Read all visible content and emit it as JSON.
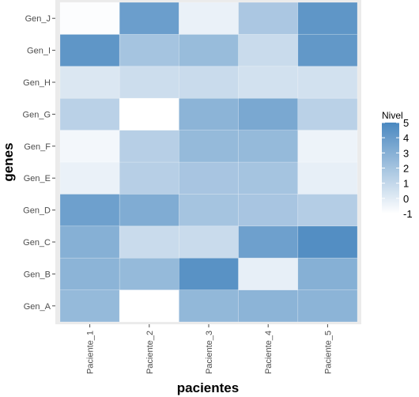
{
  "chart_data": {
    "type": "heatmap",
    "title": "",
    "xlabel": "pacientes",
    "ylabel": "genes",
    "x": [
      "Paciente_1",
      "Paciente_2",
      "Paciente_3",
      "Paciente_4",
      "Paciente_5"
    ],
    "y": [
      "Gen_A",
      "Gen_B",
      "Gen_C",
      "Gen_D",
      "Gen_E",
      "Gen_F",
      "Gen_G",
      "Gen_H",
      "Gen_I",
      "Gen_J"
    ],
    "values": [
      [
        2.5,
        -1.0,
        2.6,
        2.8,
        2.8
      ],
      [
        2.8,
        2.5,
        4.5,
        -0.2,
        3.0
      ],
      [
        3.0,
        0.8,
        0.8,
        3.8,
        4.7
      ],
      [
        3.8,
        3.2,
        2.0,
        1.9,
        1.5
      ],
      [
        -0.3,
        1.4,
        1.9,
        2.0,
        -0.2
      ],
      [
        -0.6,
        1.4,
        2.5,
        2.5,
        -0.4
      ],
      [
        1.3,
        -1.0,
        2.8,
        3.4,
        1.3
      ],
      [
        0.2,
        0.7,
        0.8,
        0.5,
        0.5
      ],
      [
        4.3,
        2.0,
        2.4,
        0.8,
        4.2
      ],
      [
        -0.9,
        3.9,
        -0.3,
        1.8,
        4.3
      ]
    ],
    "legend": {
      "title": "Nivel",
      "labels": [
        "5",
        "4",
        "3",
        "2",
        "1",
        "0",
        "-1"
      ],
      "range": [
        -1,
        5
      ],
      "position": "right"
    },
    "colors": {
      "low": "#ffffff",
      "high": "#4a88c0",
      "panel": "#ebebeb"
    },
    "grid": true
  }
}
